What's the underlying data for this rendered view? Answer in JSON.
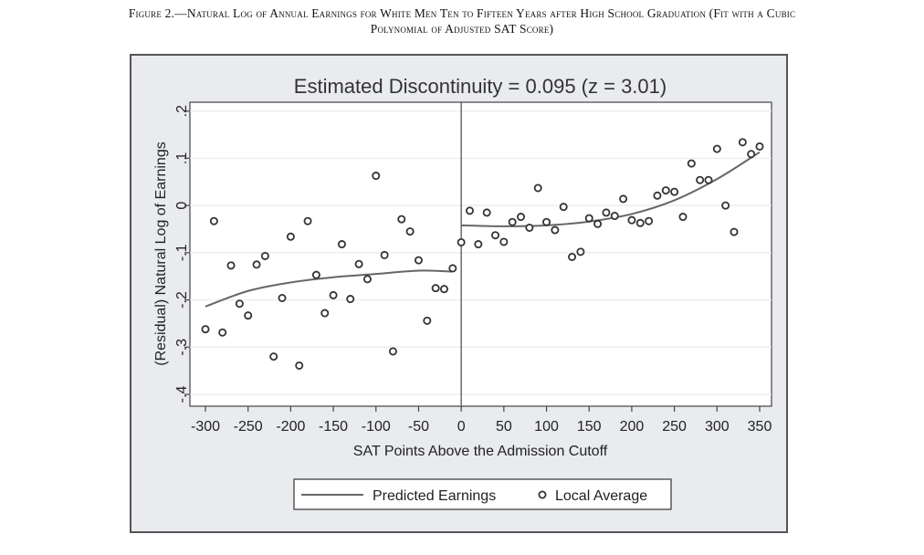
{
  "caption": {
    "line1": "Figure 2.—Natural Log of Annual Earnings for White Men Ten to Fifteen Years after High School Graduation (Fit with a Cubic",
    "line2": "Polynomial of Adjusted SAT Score)"
  },
  "chart_data": {
    "type": "scatter",
    "title": "Estimated Discontinuity = 0.095 (z = 3.01)",
    "xlabel": "SAT Points Above the Admission Cutoff",
    "ylabel": "(Residual) Natural Log of Earnings",
    "xlim": [
      -300,
      350
    ],
    "ylim": [
      -0.4,
      0.2
    ],
    "xticks": [
      -300,
      -250,
      -200,
      -150,
      -100,
      -50,
      0,
      50,
      100,
      150,
      200,
      250,
      300,
      350
    ],
    "xtick_labels": [
      "-300",
      "-250",
      "-200",
      "-150",
      "-100",
      "-50",
      "0",
      "50",
      "100",
      "150",
      "200",
      "250",
      "300",
      "350"
    ],
    "yticks": [
      -0.4,
      -0.3,
      -0.2,
      -0.1,
      0,
      0.1,
      0.2
    ],
    "ytick_labels": [
      "-.4",
      "-.3",
      "-.2",
      "-.1",
      "0",
      ".1",
      ".2"
    ],
    "grid": true,
    "cutoff": 0,
    "legend": {
      "placement": "bottom",
      "entries": [
        "Predicted Earnings",
        "Local Average"
      ]
    },
    "series": [
      {
        "name": "Local Average",
        "kind": "scatter",
        "x": [
          -300,
          -290,
          -280,
          -270,
          -260,
          -250,
          -240,
          -230,
          -220,
          -210,
          -200,
          -190,
          -180,
          -170,
          -160,
          -150,
          -140,
          -130,
          -120,
          -110,
          -100,
          -90,
          -80,
          -70,
          -60,
          -50,
          -40,
          -30,
          -20,
          -10,
          0,
          10,
          20,
          30,
          40,
          50,
          60,
          70,
          80,
          90,
          100,
          110,
          120,
          130,
          140,
          150,
          160,
          170,
          180,
          190,
          200,
          210,
          220,
          230,
          240,
          250,
          260,
          270,
          280,
          290,
          300,
          310,
          320,
          330,
          340,
          350
        ],
        "y": [
          -0.262,
          -0.033,
          -0.269,
          -0.127,
          -0.208,
          -0.233,
          -0.125,
          -0.107,
          -0.32,
          -0.196,
          -0.066,
          -0.339,
          -0.033,
          -0.147,
          -0.228,
          -0.19,
          -0.082,
          -0.198,
          -0.124,
          -0.156,
          0.063,
          -0.105,
          -0.309,
          -0.029,
          -0.055,
          -0.116,
          -0.244,
          -0.175,
          -0.177,
          -0.133,
          -0.078,
          -0.011,
          -0.082,
          -0.015,
          -0.063,
          -0.077,
          -0.035,
          -0.024,
          -0.047,
          0.037,
          -0.035,
          -0.052,
          -0.003,
          -0.109,
          -0.098,
          -0.027,
          -0.039,
          -0.015,
          -0.022,
          0.014,
          -0.031,
          -0.037,
          -0.033,
          0.021,
          0.032,
          0.029,
          -0.024,
          0.089,
          0.054,
          0.054,
          0.12,
          0.0,
          -0.056,
          0.134,
          0.109,
          0.125
        ]
      },
      {
        "name": "Predicted Earnings (below cutoff)",
        "kind": "line",
        "x": [
          -300,
          -250,
          -200,
          -150,
          -100,
          -50,
          -10
        ],
        "y": [
          -0.214,
          -0.181,
          -0.163,
          -0.152,
          -0.145,
          -0.138,
          -0.14
        ]
      },
      {
        "name": "Predicted Earnings (above cutoff)",
        "kind": "line",
        "x": [
          0,
          50,
          100,
          150,
          200,
          250,
          300,
          350
        ],
        "y": [
          -0.042,
          -0.044,
          -0.042,
          -0.034,
          -0.018,
          0.011,
          0.056,
          0.113
        ]
      }
    ]
  }
}
